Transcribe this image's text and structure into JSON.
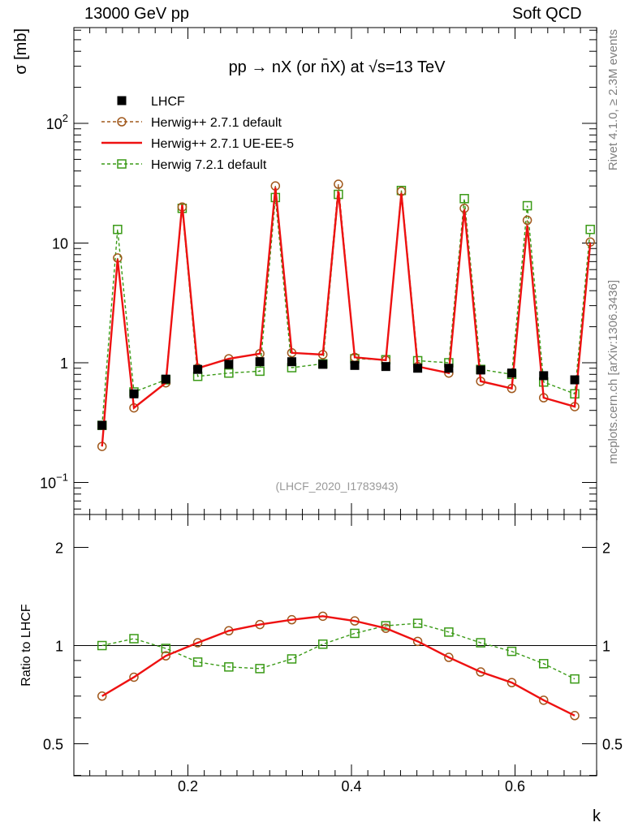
{
  "header": {
    "left": "13000 GeV pp",
    "right": "Soft QCD"
  },
  "side_labels": {
    "upper": "Rivet 4.1.0, ≥ 2.3M events",
    "lower": "mcplots.cern.ch [arXiv:1306.3436]"
  },
  "chart_data": {
    "type": "line",
    "title": "pp → nX (or n̄X) at √s=13 TeV",
    "analysis_id": "(LHCF_2020_I1783943)",
    "xlabel": "k",
    "ylabel": "σ [mb]",
    "ratio_ylabel": "Ratio to LHCF",
    "y_scale": "log",
    "ylim": [
      0.055,
      600
    ],
    "xlim": [
      0.07,
      0.705
    ],
    "ratio_ylim": [
      0.4,
      2.4
    ],
    "x_ticks": [
      "0.2",
      "0.4",
      "0.6"
    ],
    "y_ticks": [
      {
        "value": 0.1,
        "base": "10",
        "exp": "−1"
      },
      {
        "value": 1,
        "label": "1"
      },
      {
        "value": 10,
        "label": "10"
      },
      {
        "value": 100,
        "base": "10",
        "exp": "2"
      }
    ],
    "ratio_ticks": [
      "0.5",
      "1",
      "2"
    ],
    "legend_position": "top-left",
    "x": [
      0.095,
      0.114,
      0.134,
      0.173,
      0.193,
      0.212,
      0.25,
      0.288,
      0.307,
      0.327,
      0.365,
      0.384,
      0.404,
      0.442,
      0.461,
      0.481,
      0.519,
      0.538,
      0.558,
      0.596,
      0.615,
      0.635,
      0.673,
      0.692
    ],
    "series": [
      {
        "name": "LHCF",
        "style": "data",
        "color": "#000000",
        "values": [
          0.3,
          null,
          0.55,
          0.73,
          null,
          0.88,
          0.97,
          1.02,
          null,
          1.02,
          0.97,
          null,
          0.95,
          0.93,
          null,
          0.9,
          0.9,
          null,
          0.87,
          0.82,
          null,
          0.78,
          0.72,
          null
        ]
      },
      {
        "name": "Herwig++ 2.7.1 default",
        "style": "circle",
        "color": "#a0581c",
        "values": [
          0.2,
          7.5,
          0.42,
          0.68,
          20.0,
          0.9,
          1.08,
          1.19,
          30.0,
          1.21,
          1.17,
          31.0,
          1.11,
          1.05,
          27.0,
          0.93,
          0.82,
          19.5,
          0.7,
          0.61,
          15.5,
          0.51,
          0.43,
          10.2
        ]
      },
      {
        "name": "Herwig++ 2.7.1 UE-EE-5",
        "style": "line",
        "color": "#ee1111",
        "values": [
          0.2,
          7.3,
          0.42,
          0.68,
          21.0,
          0.9,
          1.08,
          1.19,
          29.0,
          1.21,
          1.17,
          27.0,
          1.11,
          1.05,
          26.0,
          0.93,
          0.82,
          19.0,
          0.7,
          0.61,
          14.0,
          0.51,
          0.43,
          10.0
        ]
      },
      {
        "name": "Herwig 7.2.1 default",
        "style": "square",
        "color": "#3a9a16",
        "values": [
          0.3,
          13.0,
          0.57,
          0.72,
          19.5,
          0.77,
          0.82,
          0.85,
          24.0,
          0.91,
          0.98,
          25.5,
          1.08,
          1.06,
          27.5,
          1.04,
          1.0,
          23.5,
          0.88,
          0.8,
          20.5,
          0.69,
          0.55,
          13.0
        ]
      }
    ],
    "ratio": {
      "reference": "LHCF",
      "x": [
        0.095,
        0.134,
        0.173,
        0.212,
        0.25,
        0.288,
        0.327,
        0.365,
        0.404,
        0.442,
        0.481,
        0.519,
        0.558,
        0.596,
        0.635,
        0.673
      ],
      "series": [
        {
          "name": "Herwig++ 2.7.1 default",
          "values": [
            0.7,
            0.8,
            0.93,
            1.02,
            1.11,
            1.16,
            1.2,
            1.23,
            1.19,
            1.13,
            1.03,
            0.92,
            0.83,
            0.77,
            0.68,
            0.61
          ]
        },
        {
          "name": "Herwig++ 2.7.1 UE-EE-5",
          "values": [
            0.7,
            0.8,
            0.93,
            1.02,
            1.11,
            1.16,
            1.2,
            1.23,
            1.19,
            1.13,
            1.03,
            0.92,
            0.83,
            0.77,
            0.68,
            0.61
          ]
        },
        {
          "name": "Herwig 7.2.1 default",
          "values": [
            1.0,
            1.05,
            0.98,
            0.89,
            0.86,
            0.85,
            0.91,
            1.01,
            1.09,
            1.15,
            1.17,
            1.1,
            1.02,
            0.96,
            0.88,
            0.79
          ]
        }
      ]
    }
  }
}
